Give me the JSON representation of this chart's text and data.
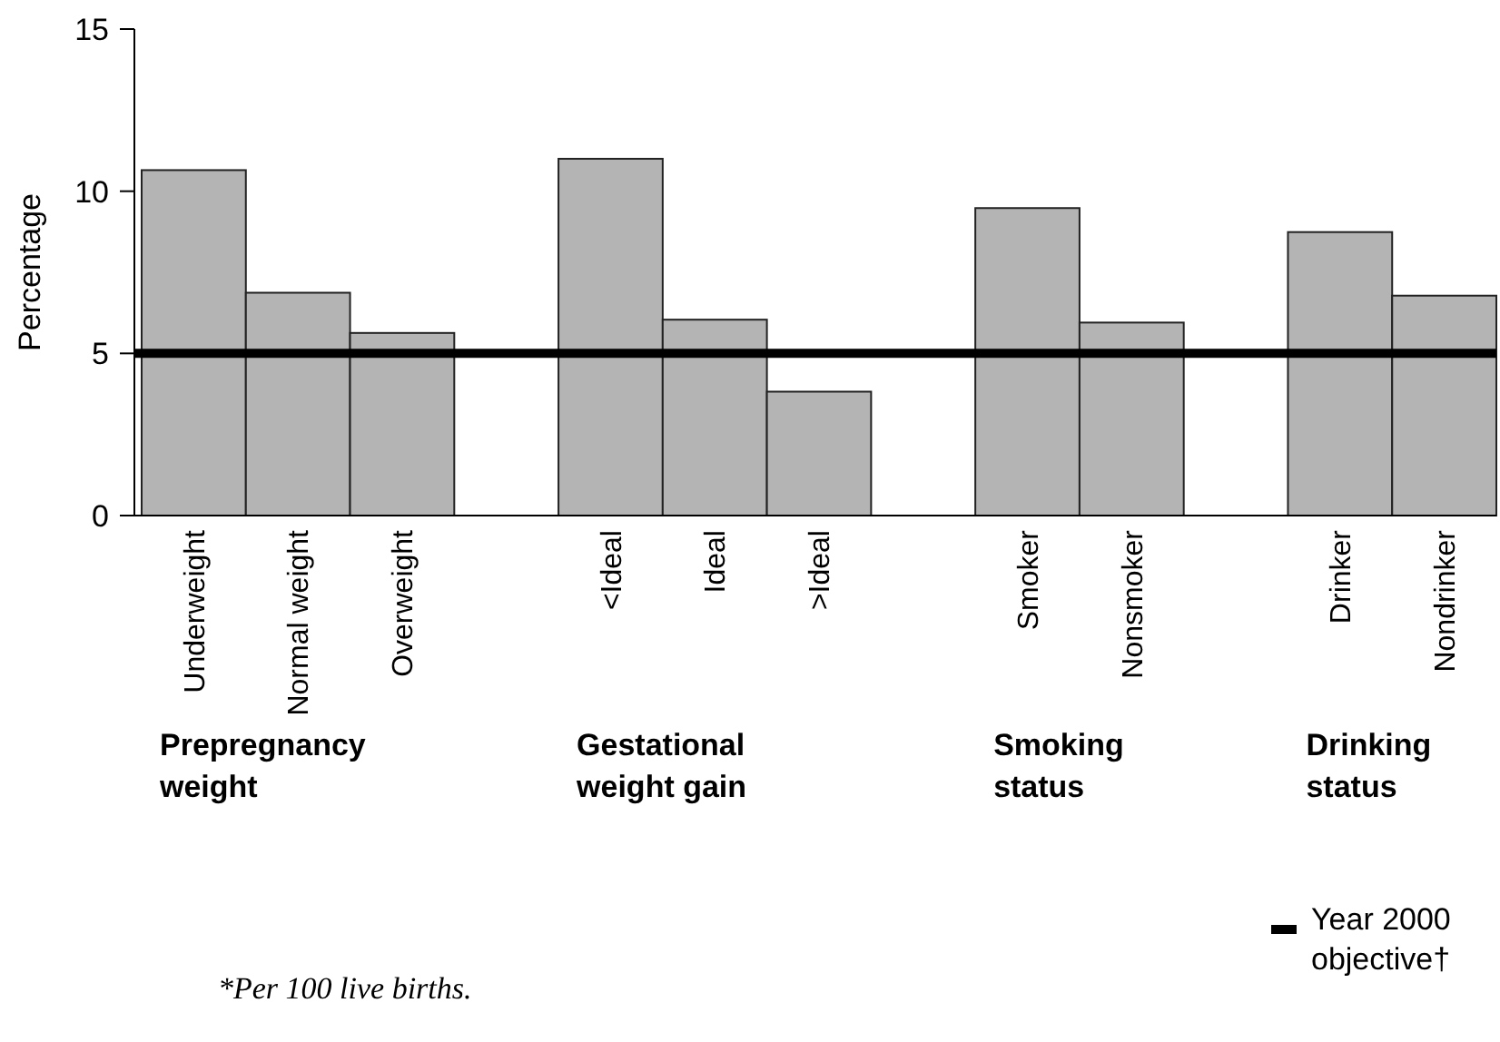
{
  "chart_data": {
    "type": "bar",
    "ylabel": "Percentage",
    "categories": [
      "Underweight",
      "Normal weight",
      "Overweight",
      null,
      "<Ideal",
      "Ideal",
      ">Ideal",
      null,
      "Smoker",
      "Nonsmoker",
      null,
      "Drinker",
      "Nondrinker"
    ],
    "values": [
      10.65,
      6.87,
      5.63,
      null,
      11.0,
      6.04,
      3.82,
      null,
      9.48,
      5.95,
      null,
      8.74,
      6.78
    ],
    "color": "#b4b4b4",
    "ylim": [
      0,
      15
    ],
    "yticks": [
      0,
      5,
      10,
      15
    ],
    "grid": false,
    "ref_lines": [
      {
        "axis": "y",
        "value": 5,
        "label": "Year 2000 objective†",
        "color": "#000000"
      }
    ],
    "legend": "bottom right",
    "annotations": [
      "Prepregnancy weight",
      "Gestational weight gain",
      "Smoking status",
      "Drinking status",
      "*Per 100 live births."
    ]
  }
}
